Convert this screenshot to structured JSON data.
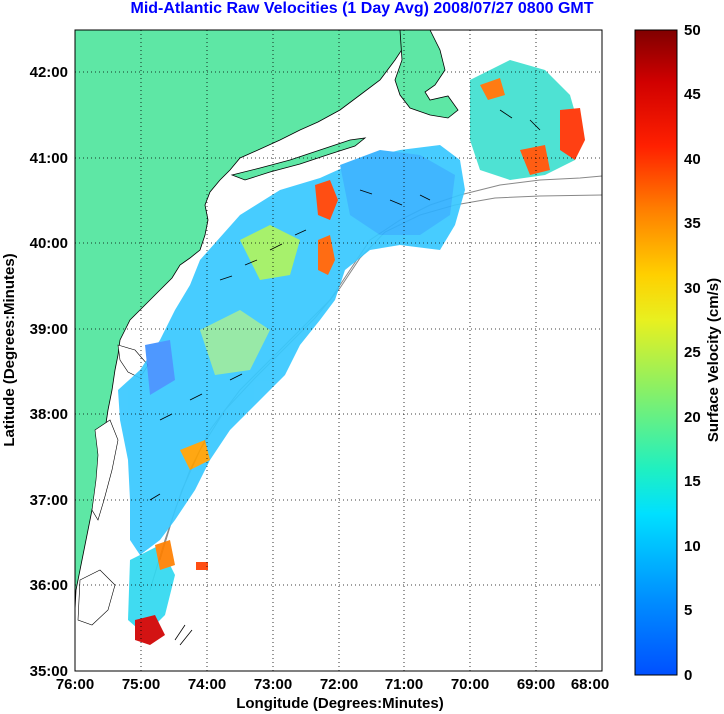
{
  "title": "Mid-Atlantic Raw Velocities (1 Day Avg) 2008/07/27 0800 GMT",
  "map": {
    "xlabel": "Longitude (Degrees:Minutes)",
    "ylabel": "Latitude (Degrees:Minutes)",
    "x_ticks": [
      "76:00",
      "75:00",
      "74:00",
      "73:00",
      "72:00",
      "71:00",
      "70:00",
      "69:00",
      "68:00"
    ],
    "y_ticks": [
      "42:00",
      "41:00",
      "40:00",
      "39:00",
      "38:00",
      "37:00",
      "36:00",
      "35:00"
    ],
    "x_tick_values": [
      -76,
      -75,
      -74,
      -73,
      -72,
      -71,
      -70,
      -69,
      -68
    ],
    "y_tick_values": [
      42,
      41,
      40,
      39,
      38,
      37,
      36,
      35
    ],
    "xlim": [
      -76,
      -68
    ],
    "ylim": [
      35,
      42.5
    ],
    "grid": true,
    "land_color": "#5ee7a5"
  },
  "colorbar": {
    "label": "Surface Velocity (cm/s)",
    "ticks": [
      "50",
      "45",
      "40",
      "35",
      "30",
      "25",
      "20",
      "15",
      "10",
      "5",
      "0"
    ],
    "tick_values": [
      50,
      45,
      40,
      35,
      30,
      25,
      20,
      15,
      10,
      5,
      0
    ],
    "range": [
      0,
      50
    ],
    "colormap": "jet"
  }
}
